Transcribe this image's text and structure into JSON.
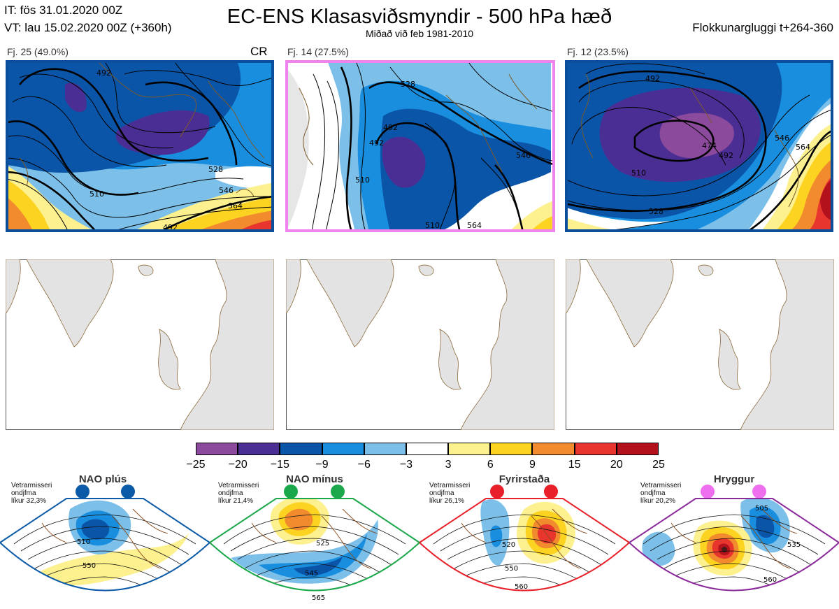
{
  "header": {
    "it": "IT: fös 31.01.2020 00Z",
    "vt": "VT: lau 15.02.2020 00Z  (+360h)",
    "title": "EC-ENS Klasasviðsmyndir - 500 hPa hæð",
    "subtitle": "Miðað við feb 1981-2010",
    "window": "Flokkunargluggi t+264-360"
  },
  "clusters": [
    {
      "label": "Fj. 25 (49.0%)",
      "tag": "CR",
      "border_color": "#0b4f9c",
      "contours": [
        "492",
        "510",
        "528",
        "546",
        "564",
        "492"
      ]
    },
    {
      "label": "Fj. 14 (27.5%)",
      "border_color": "#ee82ee",
      "contours": [
        "510",
        "528",
        "492",
        "492",
        "510",
        "546",
        "564"
      ]
    },
    {
      "label": "Fj. 12 (23.5%)",
      "border_color": "#0b4f9c",
      "contours": [
        "492",
        "474",
        "492",
        "510",
        "528",
        "546",
        "564"
      ]
    }
  ],
  "colorbar": {
    "ticks": [
      "−25",
      "−20",
      "−15",
      "−9",
      "−6",
      "−3",
      "3",
      "6",
      "9",
      "15",
      "20",
      "25"
    ],
    "colors": [
      "#8b4a9c",
      "#4b2e93",
      "#0b55a8",
      "#1a8ede",
      "#7cc0ea",
      "#ffffff",
      "#fdf08e",
      "#fcd321",
      "#f28b2d",
      "#e8362e",
      "#b3121c"
    ]
  },
  "regimes": [
    {
      "name": "NAO plús",
      "info": [
        "Vetrarmisseri",
        "ondjfma",
        "líkur 32,3%"
      ],
      "color": "#0b5aa8",
      "contours": [
        "510",
        "550"
      ]
    },
    {
      "name": "NAO mínus",
      "info": [
        "Vetrarmisseri",
        "ondjfma",
        "líkur 21,4%"
      ],
      "color": "#1aa84a",
      "contours": [
        "525",
        "545",
        "565"
      ]
    },
    {
      "name": "Fyrirstaða",
      "info": [
        "Vetrarmisseri",
        "ondjfma",
        "líkur 26,1%"
      ],
      "color": "#e8202a",
      "contours": [
        "520",
        "550",
        "560"
      ]
    },
    {
      "name": "Hryggur",
      "info": [
        "Vetrarmisseri",
        "ondjfma",
        "líkur 20,2%"
      ],
      "color": "#ee70ee",
      "contours": [
        "505",
        "535",
        "560"
      ]
    }
  ]
}
